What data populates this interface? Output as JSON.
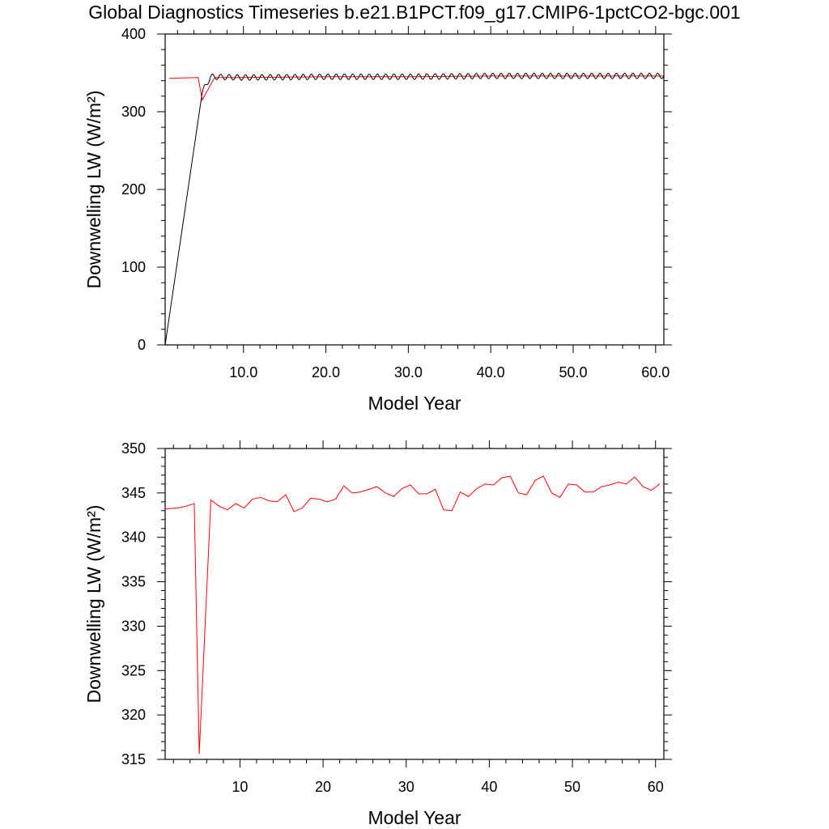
{
  "page": {
    "title": "Global Diagnostics Timeseries b.e21.B1PCT.f09_g17.CMIP6-1pctCO2-bgc.001"
  },
  "colors": {
    "red": "#ff0000",
    "black": "#000000"
  },
  "chart_data": [
    {
      "type": "line",
      "title": "",
      "xlabel": "Model Year",
      "ylabel": "Downwelling LW (W/m²)",
      "xlim": [
        0.5,
        61
      ],
      "ylim": [
        0,
        400
      ],
      "x_ticks": [
        10,
        20,
        30,
        40,
        50,
        60
      ],
      "x_tick_labels": [
        "10.0",
        "20.0",
        "30.0",
        "40.0",
        "50.0",
        "60.0"
      ],
      "y_ticks": [
        0,
        100,
        200,
        300,
        400
      ],
      "y_tick_labels": [
        "0",
        "100",
        "200",
        "300",
        "400"
      ],
      "grid": false,
      "series": [
        {
          "color": "red",
          "x": [
            1,
            4.5,
            5,
            6.5,
            10,
            20,
            30,
            40,
            50,
            61
          ],
          "y": [
            343,
            344,
            315,
            344,
            344,
            345,
            345,
            346,
            346,
            346
          ]
        },
        {
          "color": "black",
          "monthly_oscillation_amplitude": 3.5,
          "x": [
            0.5,
            5,
            6,
            10,
            20,
            30,
            40,
            50,
            61
          ],
          "y": [
            0,
            325,
            345,
            344,
            345,
            345,
            346,
            346,
            346
          ]
        }
      ]
    },
    {
      "type": "line",
      "title": "",
      "xlabel": "Model Year",
      "ylabel": "Downwelling LW (W/m²)",
      "xlim": [
        1,
        61
      ],
      "ylim": [
        315,
        350
      ],
      "x_ticks": [
        10,
        20,
        30,
        40,
        50,
        60
      ],
      "x_tick_labels": [
        "10",
        "20",
        "30",
        "40",
        "50",
        "60"
      ],
      "y_ticks": [
        315,
        320,
        325,
        330,
        335,
        340,
        345,
        350
      ],
      "y_tick_labels": [
        "315",
        "320",
        "325",
        "330",
        "335",
        "340",
        "345",
        "350"
      ],
      "grid": false,
      "series": [
        {
          "color": "red",
          "x": [
            1,
            2.5,
            3.5,
            4.5,
            5.1,
            6.5,
            7.5,
            8.5,
            9.5,
            10.5,
            11.5,
            12.5,
            13.5,
            14.5,
            15.5,
            16.5,
            17.5,
            18.5,
            19.5,
            20.5,
            21.5,
            22.5,
            23.5,
            24.5,
            25.5,
            26.5,
            27.5,
            28.5,
            29.5,
            30.5,
            31.5,
            32.5,
            33.5,
            34.5,
            35.5,
            36.5,
            37.5,
            38.5,
            39.5,
            40.5,
            41.5,
            42.5,
            43.5,
            44.5,
            45.5,
            46.5,
            47.5,
            48.5,
            49.5,
            50.5,
            51.5,
            52.5,
            53.5,
            54.5,
            55.5,
            56.5,
            57.5,
            58.5,
            59.5,
            60.5
          ],
          "y": [
            343.2,
            343.3,
            343.5,
            343.8,
            315.6,
            344.2,
            343.5,
            343.1,
            343.8,
            343.3,
            344.3,
            344.5,
            344.1,
            344.0,
            344.8,
            342.9,
            343.3,
            344.4,
            344.3,
            344.0,
            344.3,
            345.8,
            345.0,
            345.1,
            345.4,
            345.7,
            345.0,
            344.6,
            345.5,
            345.9,
            344.9,
            344.9,
            345.4,
            343.1,
            343.0,
            345.1,
            344.6,
            345.5,
            346.0,
            345.9,
            346.7,
            346.9,
            345.0,
            344.8,
            346.4,
            346.9,
            345.0,
            344.5,
            346.0,
            345.9,
            345.1,
            345.1,
            345.7,
            345.9,
            346.2,
            346.0,
            346.8,
            345.7,
            345.3,
            346.0
          ]
        }
      ]
    }
  ]
}
